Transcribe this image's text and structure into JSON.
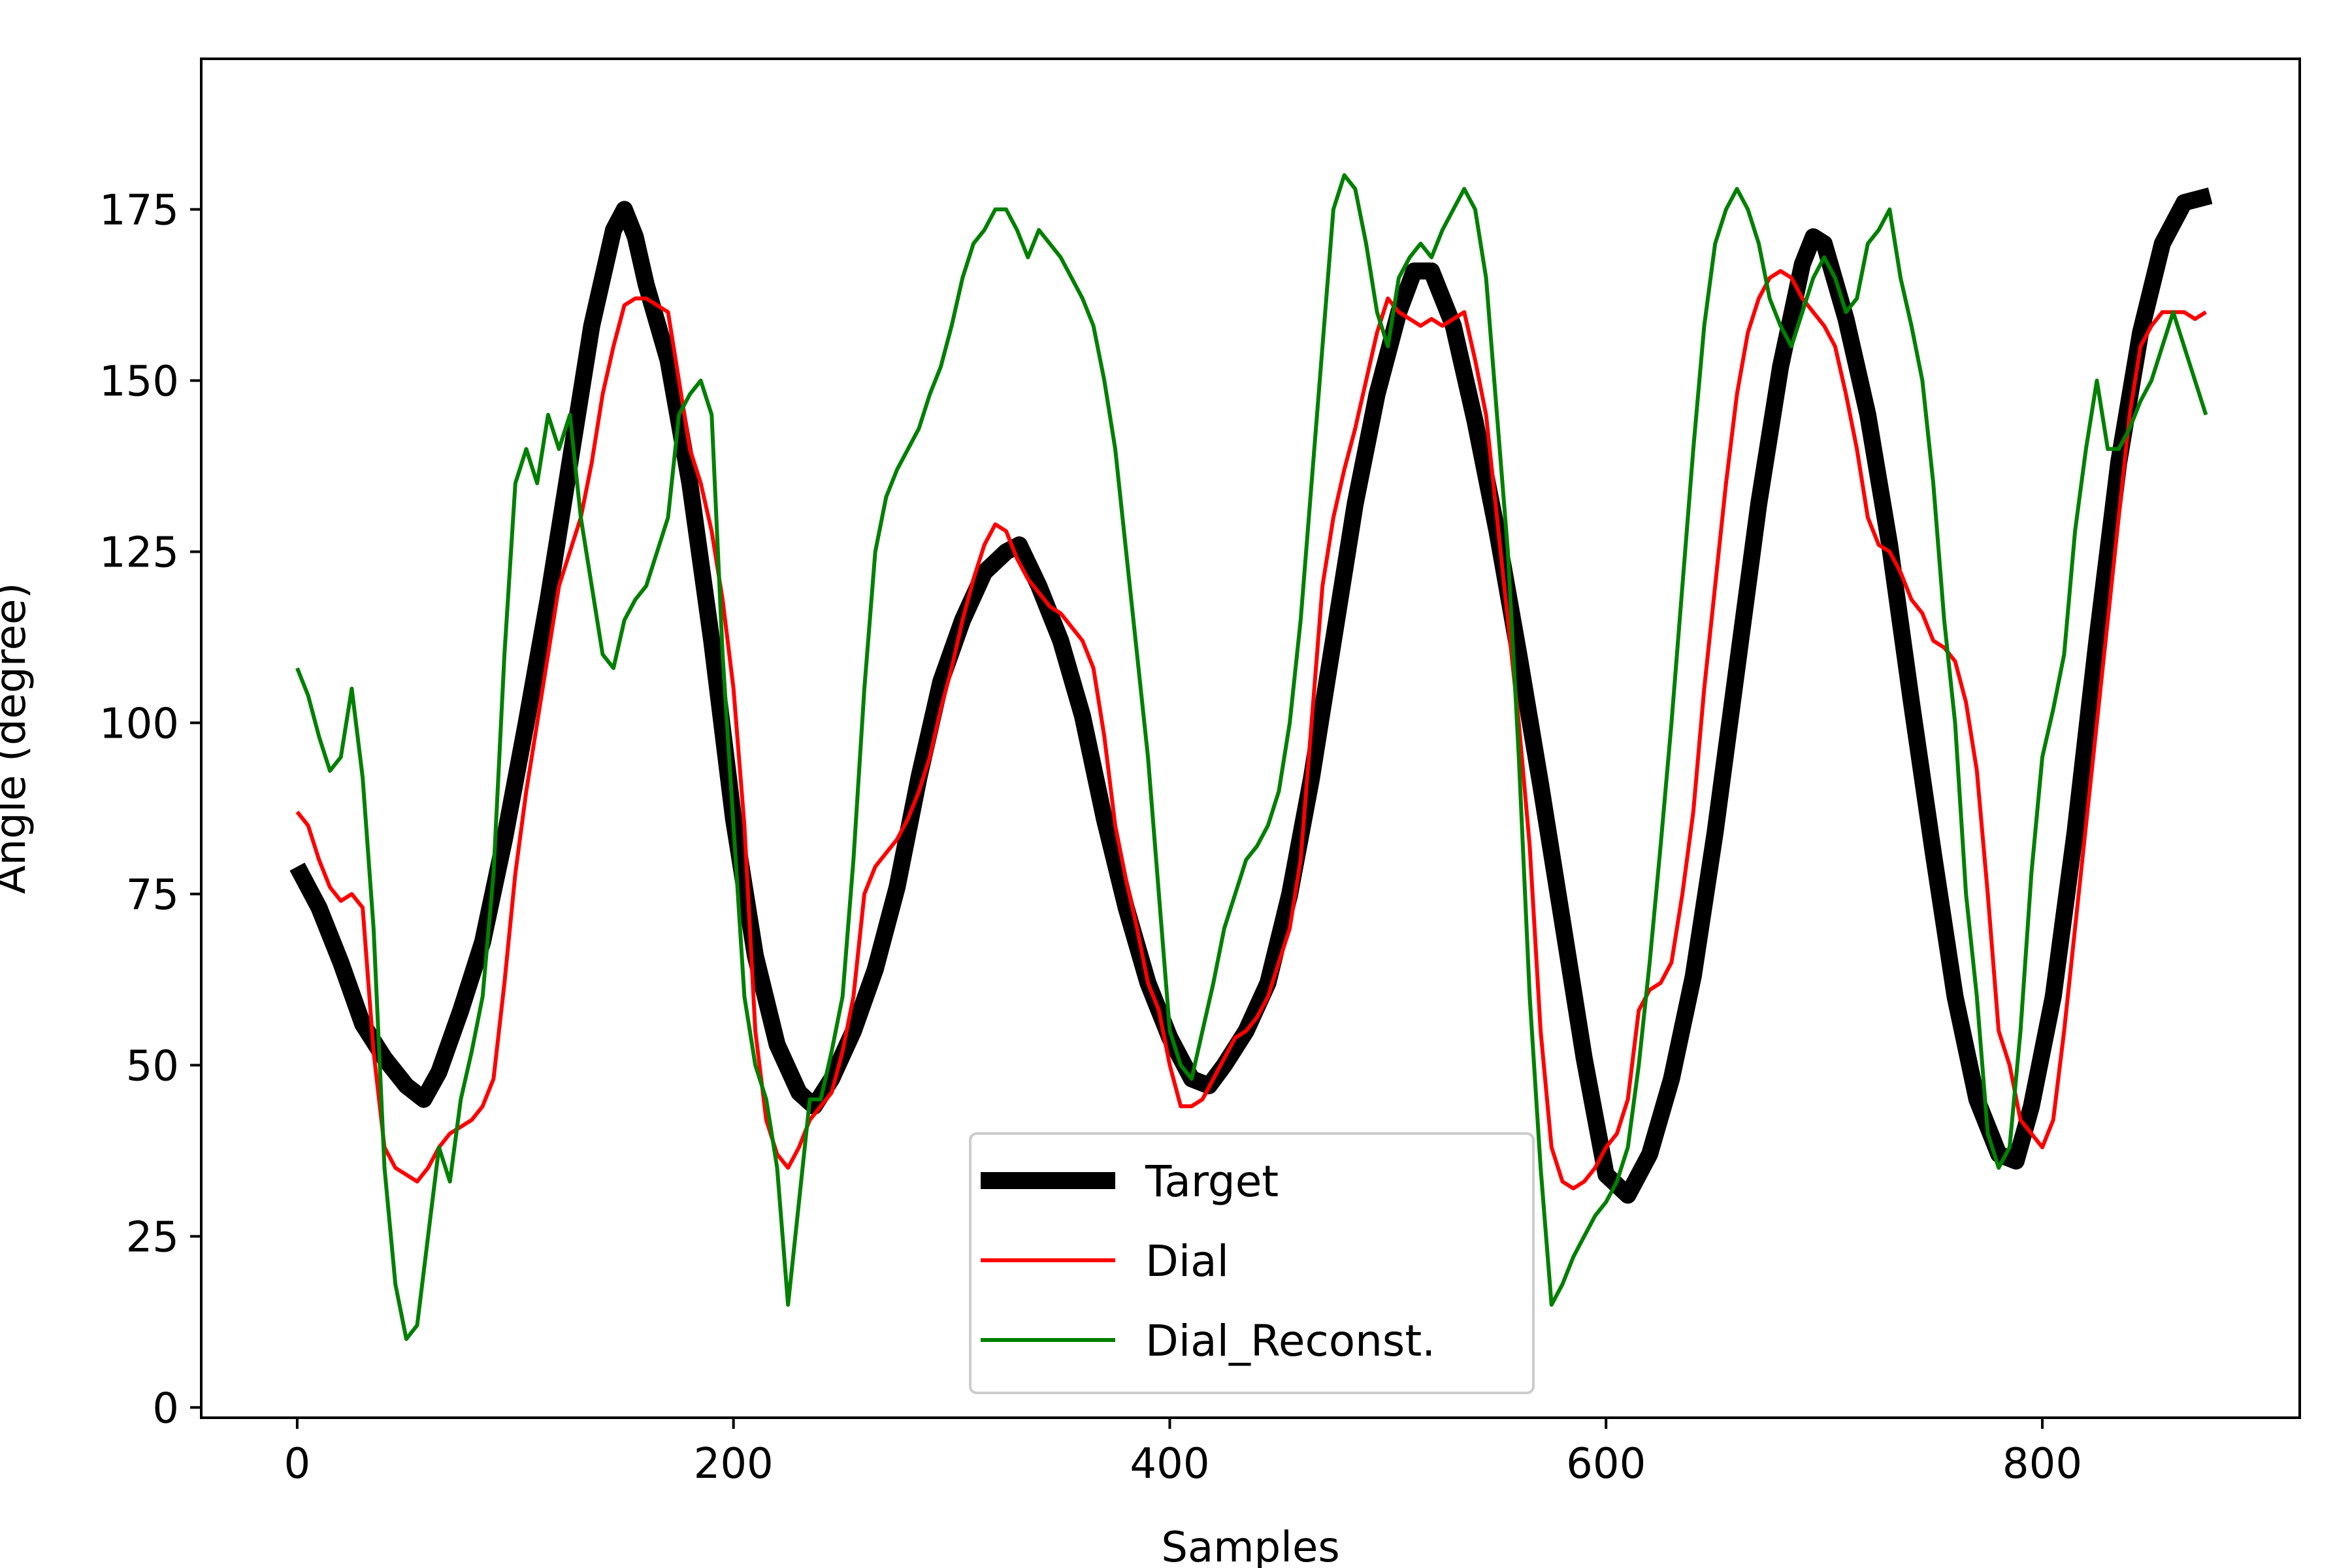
{
  "chart_data": {
    "type": "line",
    "title": "",
    "xlabel": "Samples",
    "ylabel": "Angle (degree)",
    "xlim": [
      -44,
      918
    ],
    "ylim": [
      -1.5,
      197
    ],
    "xticks": [
      0,
      200,
      400,
      600,
      800
    ],
    "yticks": [
      0,
      25,
      50,
      75,
      100,
      125,
      150,
      175
    ],
    "grid": false,
    "legend_position": "lower-center",
    "series": [
      {
        "name": "Target",
        "color": "#000000",
        "x": [
          0,
          10,
          20,
          30,
          40,
          50,
          58,
          65,
          75,
          85,
          95,
          105,
          115,
          125,
          135,
          145,
          150,
          155,
          160,
          170,
          180,
          190,
          200,
          210,
          220,
          230,
          237,
          245,
          255,
          265,
          275,
          285,
          295,
          305,
          315,
          325,
          331,
          340,
          350,
          360,
          370,
          380,
          390,
          400,
          410,
          418,
          425,
          435,
          445,
          455,
          465,
          475,
          485,
          495,
          505,
          512,
          520,
          530,
          540,
          550,
          560,
          570,
          580,
          590,
          600,
          610,
          620,
          630,
          640,
          650,
          660,
          670,
          680,
          690,
          695,
          700,
          710,
          720,
          730,
          740,
          750,
          760,
          770,
          780,
          788,
          795,
          805,
          815,
          825,
          835,
          845,
          855,
          865,
          877
        ],
        "y": [
          79,
          73,
          65,
          56,
          51,
          47,
          45,
          49,
          58,
          68,
          83,
          100,
          118,
          138,
          158,
          172,
          175,
          171,
          164,
          153,
          135,
          112,
          86,
          66,
          53,
          46,
          44,
          48,
          55,
          64,
          76,
          92,
          106,
          115,
          122,
          125,
          126,
          120,
          112,
          101,
          86,
          73,
          62,
          54,
          48,
          47,
          50,
          55,
          62,
          75,
          92,
          112,
          132,
          148,
          160,
          166,
          166,
          158,
          144,
          128,
          110,
          91,
          71,
          51,
          34,
          31,
          37,
          48,
          63,
          84,
          108,
          132,
          152,
          167,
          171,
          170,
          159,
          145,
          126,
          103,
          81,
          60,
          45,
          37,
          36,
          44,
          60,
          84,
          112,
          138,
          157,
          170,
          176,
          177
        ]
      },
      {
        "name": "Dial",
        "color": "#ff0000",
        "x": [
          0,
          5,
          10,
          15,
          20,
          25,
          30,
          35,
          40,
          45,
          50,
          55,
          60,
          65,
          70,
          75,
          80,
          85,
          90,
          95,
          100,
          105,
          110,
          115,
          120,
          125,
          130,
          135,
          140,
          145,
          150,
          155,
          160,
          165,
          170,
          175,
          180,
          185,
          190,
          195,
          200,
          205,
          210,
          215,
          220,
          225,
          230,
          235,
          240,
          245,
          250,
          255,
          260,
          265,
          270,
          275,
          280,
          285,
          290,
          295,
          300,
          305,
          310,
          315,
          320,
          325,
          330,
          335,
          340,
          345,
          350,
          355,
          360,
          365,
          370,
          375,
          380,
          385,
          390,
          395,
          400,
          405,
          410,
          415,
          420,
          425,
          430,
          435,
          440,
          445,
          450,
          455,
          460,
          465,
          470,
          475,
          480,
          485,
          490,
          495,
          500,
          505,
          510,
          515,
          520,
          525,
          530,
          535,
          540,
          545,
          550,
          555,
          560,
          565,
          570,
          575,
          580,
          585,
          590,
          595,
          600,
          605,
          610,
          615,
          620,
          625,
          630,
          635,
          640,
          645,
          650,
          655,
          660,
          665,
          670,
          675,
          680,
          685,
          690,
          695,
          700,
          705,
          710,
          715,
          720,
          725,
          730,
          735,
          740,
          745,
          750,
          755,
          760,
          765,
          770,
          775,
          780,
          785,
          790,
          795,
          800,
          805,
          810,
          815,
          820,
          825,
          830,
          835,
          840,
          845,
          850,
          855,
          860,
          865,
          870,
          875
        ],
        "y": [
          87,
          85,
          80,
          76,
          74,
          75,
          73,
          52,
          38,
          35,
          34,
          33,
          35,
          38,
          40,
          41,
          42,
          44,
          48,
          62,
          78,
          90,
          100,
          110,
          120,
          125,
          130,
          138,
          148,
          155,
          161,
          162,
          162,
          161,
          160,
          150,
          140,
          135,
          128,
          118,
          105,
          85,
          55,
          42,
          37,
          35,
          38,
          42,
          44,
          46,
          52,
          60,
          75,
          79,
          81,
          83,
          86,
          90,
          95,
          102,
          108,
          115,
          121,
          126,
          129,
          128,
          124,
          121,
          119,
          117,
          116,
          114,
          112,
          108,
          98,
          85,
          77,
          70,
          62,
          58,
          50,
          44,
          44,
          45,
          48,
          51,
          54,
          55,
          57,
          60,
          65,
          70,
          80,
          100,
          120,
          130,
          137,
          143,
          150,
          157,
          162,
          160,
          159,
          158,
          159,
          158,
          159,
          160,
          153,
          145,
          130,
          115,
          100,
          82,
          55,
          38,
          33,
          32,
          33,
          35,
          38,
          40,
          45,
          58,
          61,
          62,
          65,
          75,
          87,
          105,
          120,
          135,
          148,
          157,
          162,
          165,
          166,
          165,
          162,
          160,
          158,
          155,
          148,
          140,
          130,
          126,
          125,
          122,
          118,
          116,
          112,
          111,
          109,
          103,
          93,
          75,
          55,
          50,
          42,
          40,
          38,
          42,
          55,
          70,
          85,
          100,
          115,
          130,
          145,
          155,
          158,
          160,
          160,
          160,
          159,
          160
        ]
      },
      {
        "name": "Dial_Reconst.",
        "color": "#008000",
        "x": [
          0,
          5,
          10,
          15,
          20,
          25,
          30,
          35,
          40,
          45,
          50,
          55,
          60,
          65,
          70,
          75,
          80,
          85,
          90,
          95,
          100,
          105,
          110,
          115,
          120,
          125,
          130,
          135,
          140,
          145,
          150,
          155,
          160,
          165,
          170,
          175,
          180,
          185,
          190,
          195,
          200,
          205,
          210,
          215,
          220,
          225,
          230,
          235,
          240,
          245,
          250,
          255,
          260,
          265,
          270,
          275,
          280,
          285,
          290,
          295,
          300,
          305,
          310,
          315,
          320,
          325,
          330,
          335,
          340,
          345,
          350,
          355,
          360,
          365,
          370,
          375,
          380,
          385,
          390,
          395,
          400,
          405,
          410,
          415,
          420,
          425,
          430,
          435,
          440,
          445,
          450,
          455,
          460,
          465,
          470,
          475,
          480,
          485,
          490,
          495,
          500,
          505,
          510,
          515,
          520,
          525,
          530,
          535,
          540,
          545,
          550,
          555,
          560,
          565,
          570,
          575,
          580,
          585,
          590,
          595,
          600,
          605,
          610,
          615,
          620,
          625,
          630,
          635,
          640,
          645,
          650,
          655,
          660,
          665,
          670,
          675,
          680,
          685,
          690,
          695,
          700,
          705,
          710,
          715,
          720,
          725,
          730,
          735,
          740,
          745,
          750,
          755,
          760,
          765,
          770,
          775,
          780,
          785,
          790,
          795,
          800,
          805,
          810,
          815,
          820,
          825,
          830,
          835,
          840,
          845,
          850,
          855,
          860,
          865,
          870,
          875
        ],
        "y": [
          108,
          104,
          98,
          93,
          95,
          105,
          92,
          70,
          35,
          18,
          10,
          12,
          25,
          38,
          33,
          45,
          52,
          60,
          78,
          110,
          135,
          140,
          135,
          145,
          140,
          145,
          130,
          120,
          110,
          108,
          115,
          118,
          120,
          125,
          130,
          145,
          148,
          150,
          145,
          110,
          85,
          60,
          50,
          45,
          35,
          15,
          30,
          45,
          45,
          52,
          60,
          80,
          105,
          125,
          133,
          137,
          140,
          143,
          148,
          152,
          158,
          165,
          170,
          172,
          175,
          175,
          172,
          168,
          172,
          170,
          168,
          165,
          162,
          158,
          150,
          140,
          125,
          110,
          95,
          75,
          55,
          50,
          48,
          55,
          62,
          70,
          75,
          80,
          82,
          85,
          90,
          100,
          115,
          135,
          155,
          175,
          180,
          178,
          170,
          160,
          155,
          165,
          168,
          170,
          168,
          172,
          175,
          178,
          175,
          165,
          145,
          125,
          95,
          60,
          35,
          15,
          18,
          22,
          25,
          28,
          30,
          33,
          38,
          50,
          65,
          82,
          100,
          120,
          140,
          158,
          170,
          175,
          178,
          175,
          170,
          162,
          158,
          155,
          160,
          165,
          168,
          165,
          160,
          162,
          170,
          172,
          175,
          165,
          158,
          150,
          135,
          115,
          100,
          75,
          60,
          40,
          35,
          38,
          55,
          78,
          95,
          102,
          110,
          128,
          140,
          150,
          140,
          140,
          143,
          147,
          150,
          155,
          160,
          155,
          150,
          145
        ]
      }
    ]
  }
}
